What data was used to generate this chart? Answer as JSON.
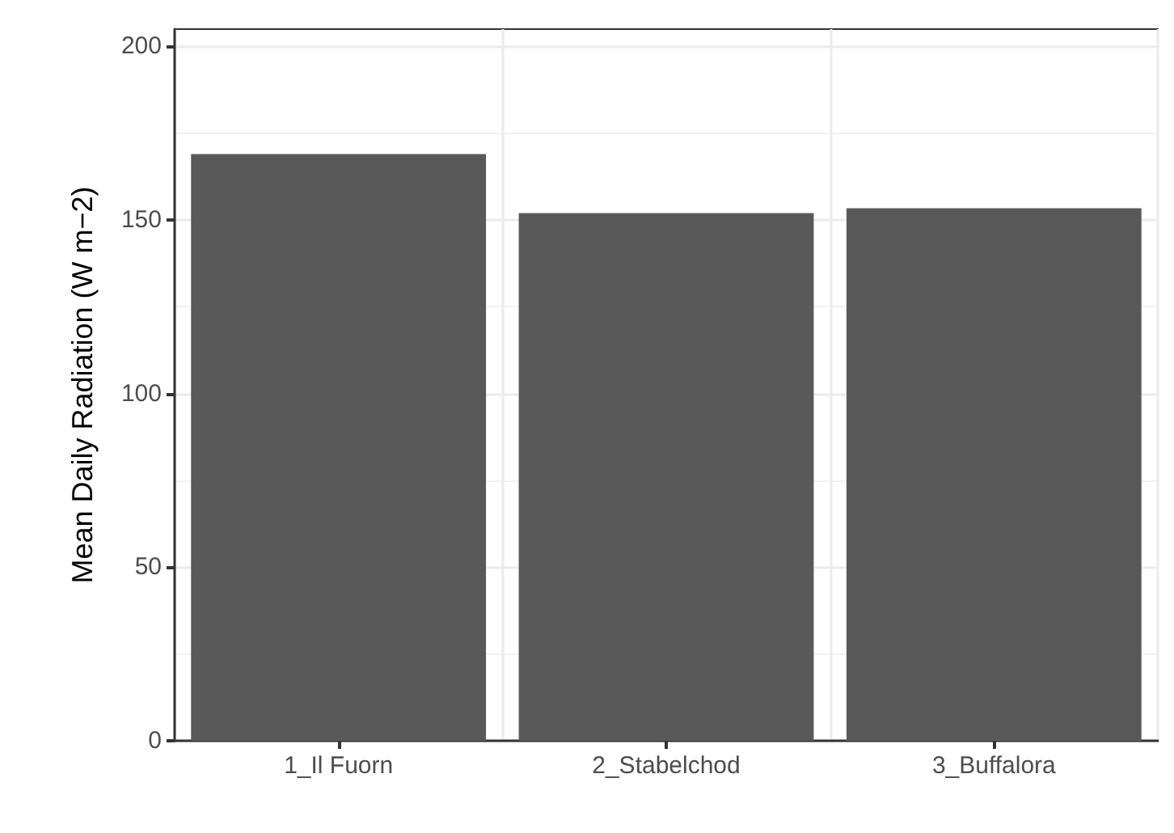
{
  "chart_data": {
    "type": "bar",
    "ylabel": "Mean Daily Radiation (W m−2)",
    "categories": [
      "1_Il Fuorn",
      "2_Stabelchod",
      "3_Buffalora"
    ],
    "values": [
      169,
      152,
      153.4
    ],
    "color": "#595959",
    "ylim": [
      0,
      205
    ],
    "yticks": [
      0,
      50,
      100,
      150,
      200
    ],
    "grid": true
  }
}
